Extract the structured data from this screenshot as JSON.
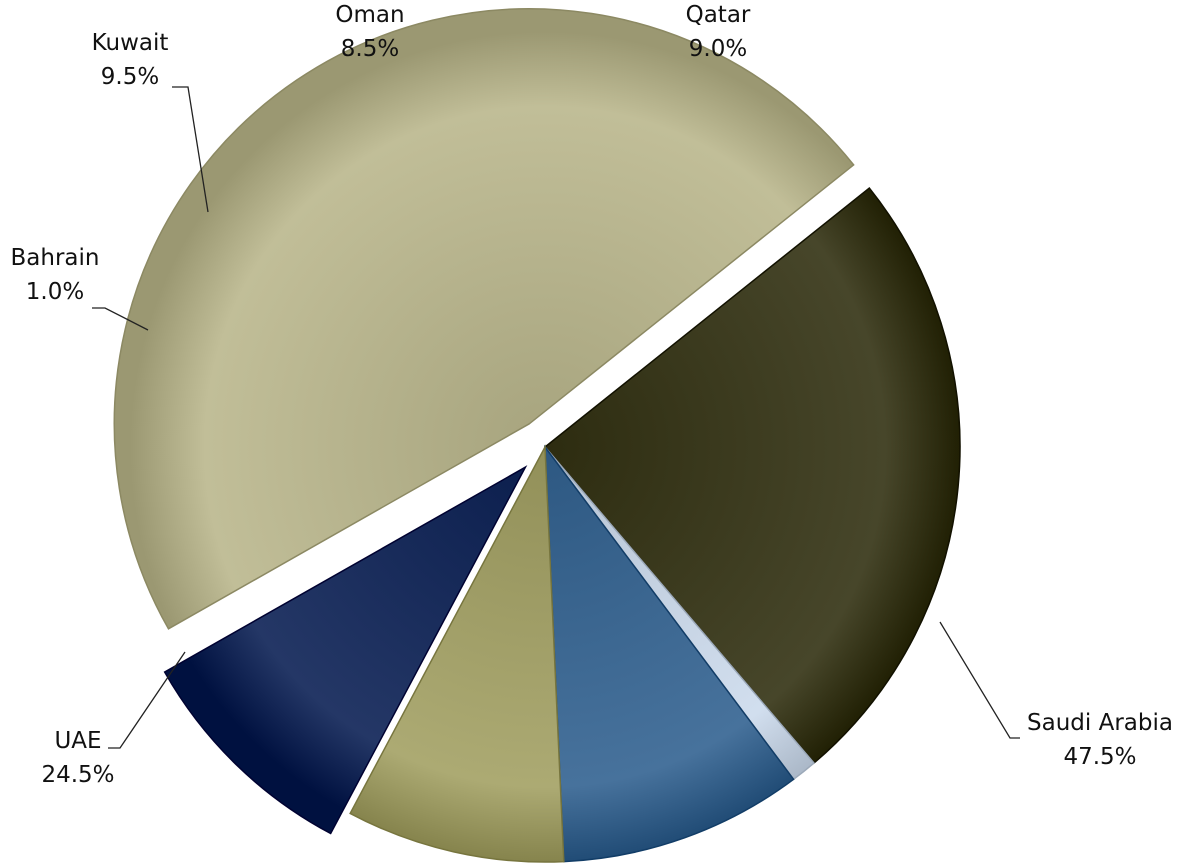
{
  "chart_data": {
    "type": "pie",
    "title": "",
    "slices": [
      {
        "label": "Saudi Arabia",
        "value": 47.5,
        "value_label": "47.5%",
        "color": "#B9B690",
        "exploded": true
      },
      {
        "label": "UAE",
        "value": 24.5,
        "value_label": "24.5%",
        "color": "#3F3E22",
        "exploded": false
      },
      {
        "label": "Bahrain",
        "value": 1.0,
        "value_label": "1.0%",
        "color": "#C9D6E6",
        "exploded": false
      },
      {
        "label": "Kuwait",
        "value": 9.5,
        "value_label": "9.5%",
        "color": "#3F6A94",
        "exploded": false
      },
      {
        "label": "Oman",
        "value": 8.5,
        "value_label": "8.5%",
        "color": "#A4A26B",
        "exploded": false
      },
      {
        "label": "Qatar",
        "value": 9.0,
        "value_label": "9.0%",
        "color": "#1C2F5E",
        "exploded": true
      }
    ],
    "legend": "none",
    "labels_outside": true
  }
}
